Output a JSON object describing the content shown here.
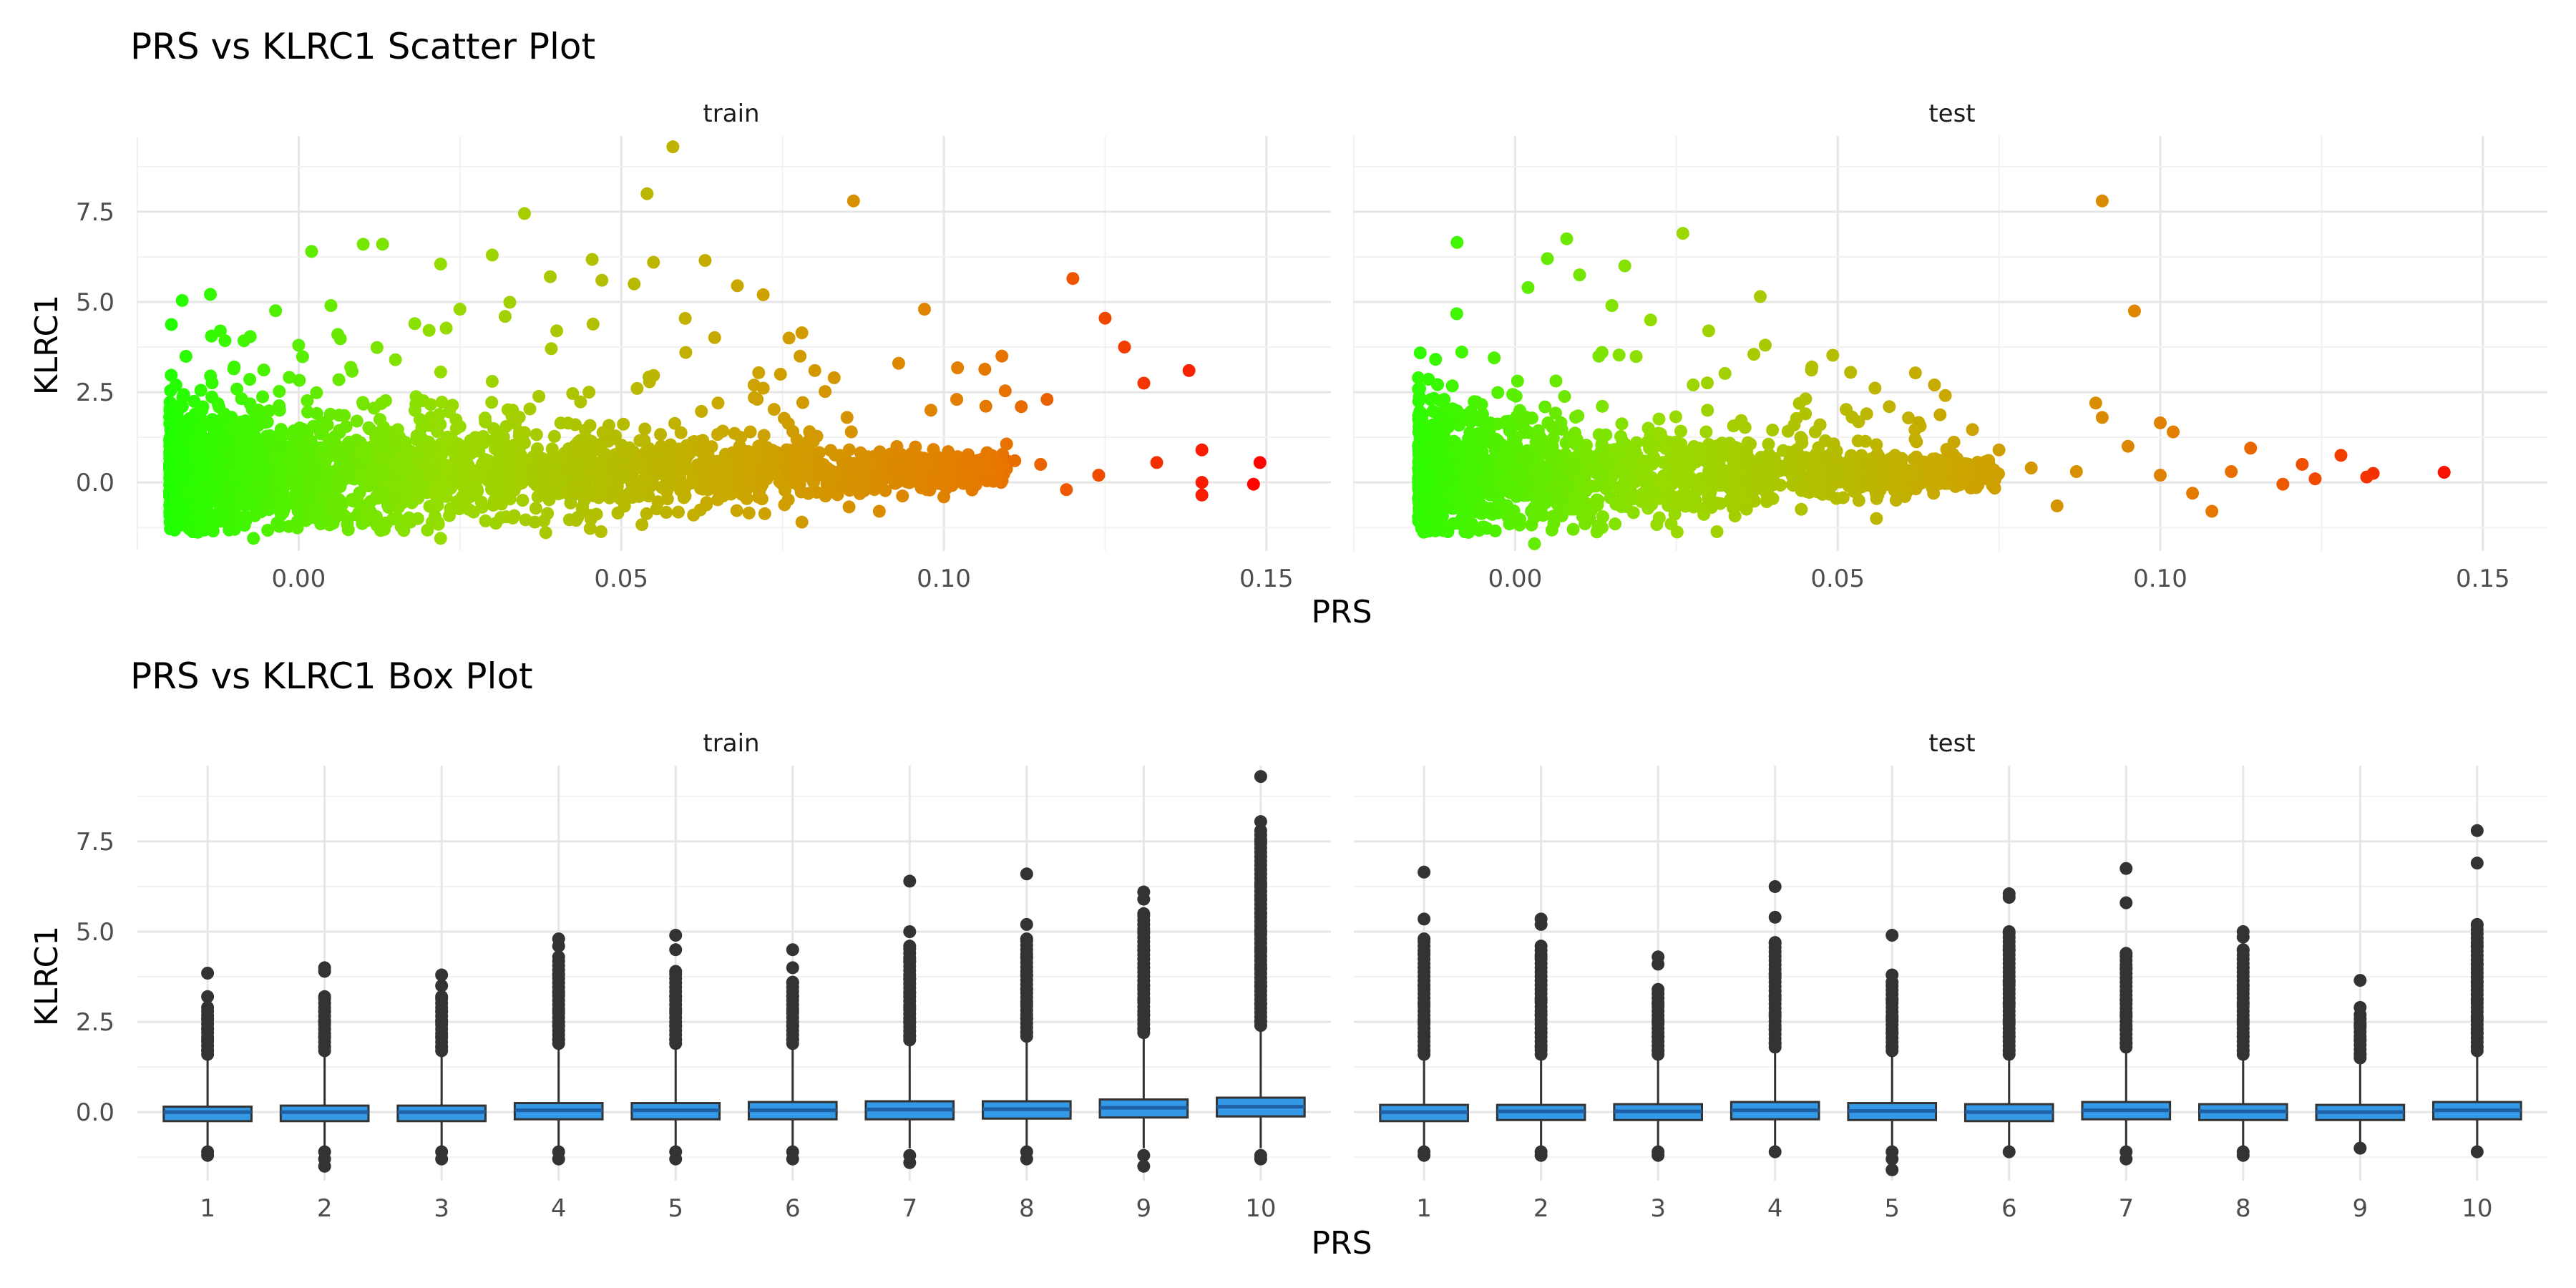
{
  "chart_data": [
    {
      "type": "scatter",
      "title": "PRS vs KLRC1 Scatter Plot",
      "xlabel": "PRS",
      "ylabel": "KLRC1",
      "panels": [
        "train",
        "test"
      ],
      "xlim": [
        -0.025,
        0.16
      ],
      "ylim": [
        -1.9,
        9.6
      ],
      "x_ticks": [
        0.0,
        0.05,
        0.1,
        0.15
      ],
      "x_tick_labels": [
        "0.00",
        "0.05",
        "0.10",
        "0.15"
      ],
      "y_ticks": [
        0.0,
        2.5,
        5.0,
        7.5
      ],
      "y_tick_labels": [
        "0.0",
        "2.5",
        "5.0",
        "7.5"
      ],
      "color_scale": {
        "low": "#22ff00",
        "high": "#ff0000",
        "low_value": -0.02,
        "high_value": 0.15
      },
      "grid": true,
      "series": [
        {
          "panel": "train",
          "points": [
            [
              0.058,
              9.3
            ],
            [
              0.086,
              7.8
            ],
            [
              0.035,
              7.45
            ],
            [
              0.054,
              8.0
            ],
            [
              0.01,
              6.6
            ],
            [
              0.013,
              6.6
            ],
            [
              0.002,
              6.4
            ],
            [
              0.03,
              6.3
            ],
            [
              0.022,
              6.05
            ],
            [
              0.055,
              6.1
            ],
            [
              0.063,
              6.15
            ],
            [
              0.039,
              5.7
            ],
            [
              0.047,
              5.6
            ],
            [
              0.052,
              5.5
            ],
            [
              0.068,
              5.45
            ],
            [
              0.072,
              5.2
            ],
            [
              0.12,
              5.65
            ],
            [
              0.125,
              4.55
            ],
            [
              0.128,
              3.75
            ],
            [
              0.097,
              4.8
            ],
            [
              0.138,
              3.1
            ],
            [
              0.131,
              2.75
            ],
            [
              0.109,
              3.5
            ],
            [
              0.093,
              3.3
            ],
            [
              0.076,
              4.0
            ],
            [
              0.08,
              3.1
            ],
            [
              0.116,
              2.3
            ],
            [
              0.112,
              2.1
            ],
            [
              0.149,
              0.55
            ],
            [
              0.14,
              0.9
            ],
            [
              0.14,
              0.0
            ],
            [
              0.14,
              -0.35
            ],
            [
              0.148,
              -0.05
            ],
            [
              0.133,
              0.55
            ],
            [
              0.124,
              0.2
            ],
            [
              0.119,
              -0.2
            ],
            [
              0.115,
              0.5
            ],
            [
              0.1,
              -0.4
            ],
            [
              0.09,
              -0.8
            ],
            [
              0.078,
              -1.1
            ],
            [
              0.043,
              -1.05
            ],
            [
              0.022,
              -1.55
            ],
            [
              -0.007,
              -1.55
            ],
            [
              0.018,
              4.4
            ],
            [
              0.005,
              4.9
            ],
            [
              0.025,
              4.8
            ],
            [
              0.032,
              4.6
            ],
            [
              0.04,
              4.2
            ],
            [
              0.06,
              3.6
            ],
            [
              0.045,
              2.5
            ],
            [
              0.065,
              2.2
            ],
            [
              0.085,
              1.8
            ],
            [
              0.098,
              2.0
            ],
            [
              0.083,
              2.9
            ],
            [
              0.102,
              2.3
            ],
            [
              0.07,
              1.4
            ],
            [
              0.03,
              2.8
            ],
            [
              0.015,
              3.4
            ],
            [
              0.0,
              3.8
            ],
            [
              -0.01,
              3.2
            ],
            [
              -0.015,
              2.0
            ],
            [
              -0.018,
              0.5
            ],
            [
              -0.02,
              -0.3
            ],
            [
              0.107,
              0.3
            ],
            [
              0.092,
              0.55
            ],
            [
              0.104,
              0.2
            ],
            [
              0.111,
              0.6
            ],
            [
              0.095,
              0.8
            ]
          ],
          "cloud": {
            "x_min": -0.02,
            "x_max": 0.11,
            "y_center": 0.3,
            "description": "dense cloud"
          }
        },
        {
          "panel": "test",
          "points": [
            [
              0.091,
              7.8
            ],
            [
              0.096,
              4.75
            ],
            [
              0.026,
              6.9
            ],
            [
              0.008,
              6.75
            ],
            [
              -0.009,
              6.65
            ],
            [
              0.005,
              6.2
            ],
            [
              0.017,
              6.0
            ],
            [
              0.01,
              5.75
            ],
            [
              0.038,
              5.15
            ],
            [
              0.015,
              4.9
            ],
            [
              0.002,
              5.4
            ],
            [
              0.021,
              4.5
            ],
            [
              0.03,
              4.2
            ],
            [
              0.037,
              3.55
            ],
            [
              0.046,
              3.2
            ],
            [
              0.052,
              3.05
            ],
            [
              0.065,
              2.7
            ],
            [
              0.058,
              2.1
            ],
            [
              0.09,
              2.2
            ],
            [
              0.091,
              1.8
            ],
            [
              0.1,
              1.65
            ],
            [
              0.102,
              1.4
            ],
            [
              0.114,
              0.95
            ],
            [
              0.122,
              0.5
            ],
            [
              0.128,
              0.75
            ],
            [
              0.133,
              0.25
            ],
            [
              0.144,
              0.28
            ],
            [
              0.132,
              0.15
            ],
            [
              0.124,
              0.1
            ],
            [
              0.119,
              -0.05
            ],
            [
              0.108,
              -0.8
            ],
            [
              0.084,
              -0.65
            ],
            [
              0.056,
              -1.0
            ],
            [
              0.009,
              -1.3
            ],
            [
              0.003,
              -1.7
            ],
            [
              -0.011,
              2.3
            ],
            [
              -0.013,
              1.0
            ],
            [
              -0.015,
              0.0
            ],
            [
              0.095,
              1.0
            ],
            [
              0.087,
              0.3
            ],
            [
              0.1,
              0.2
            ],
            [
              0.105,
              -0.3
            ],
            [
              0.111,
              0.3
            ],
            [
              0.07,
              0.5
            ],
            [
              0.075,
              0.9
            ],
            [
              0.08,
              0.4
            ],
            [
              0.062,
              1.2
            ],
            [
              0.045,
              1.9
            ]
          ],
          "cloud": {
            "x_min": -0.015,
            "x_max": 0.075,
            "y_center": 0.25,
            "description": "dense cloud"
          }
        }
      ]
    },
    {
      "type": "box",
      "title": "PRS vs KLRC1 Box Plot",
      "xlabel": "PRS",
      "ylabel": "KLRC1",
      "panels": [
        "train",
        "test"
      ],
      "categories": [
        "1",
        "2",
        "3",
        "4",
        "5",
        "6",
        "7",
        "8",
        "9",
        "10"
      ],
      "ylim": [
        -1.9,
        9.6
      ],
      "y_ticks": [
        0.0,
        2.5,
        5.0,
        7.5
      ],
      "y_tick_labels": [
        "0.0",
        "2.5",
        "5.0",
        "7.5"
      ],
      "box_fill": "#3399e6",
      "median_color": "#3399e6",
      "outlier_color": "#333333",
      "grid": true,
      "series": [
        {
          "panel": "train",
          "boxes": [
            {
              "q1": -0.25,
              "median": 0.0,
              "q3": 0.15,
              "whisker_low": -1.0,
              "whisker_high": 1.5,
              "outliers_low": [
                -1.1,
                -1.2
              ],
              "outliers_high": [
                1.7,
                2.0,
                2.3,
                2.6,
                2.9,
                3.2,
                3.85
              ]
            },
            {
              "q1": -0.25,
              "median": 0.0,
              "q3": 0.18,
              "whisker_low": -1.0,
              "whisker_high": 1.6,
              "outliers_low": [
                -1.1,
                -1.3,
                -1.5
              ],
              "outliers_high": [
                1.8,
                2.1,
                2.5,
                2.8,
                3.2,
                3.9,
                4.0
              ]
            },
            {
              "q1": -0.25,
              "median": 0.0,
              "q3": 0.18,
              "whisker_low": -1.0,
              "whisker_high": 1.6,
              "outliers_low": [
                -1.1,
                -1.3
              ],
              "outliers_high": [
                1.8,
                2.1,
                2.5,
                2.8,
                3.2,
                3.5,
                3.8
              ]
            },
            {
              "q1": -0.2,
              "median": 0.05,
              "q3": 0.25,
              "whisker_low": -1.0,
              "whisker_high": 1.8,
              "outliers_low": [
                -1.1,
                -1.3
              ],
              "outliers_high": [
                2.0,
                2.4,
                2.8,
                3.3,
                3.8,
                4.3,
                4.6,
                4.8
              ]
            },
            {
              "q1": -0.2,
              "median": 0.05,
              "q3": 0.25,
              "whisker_low": -1.0,
              "whisker_high": 1.8,
              "outliers_low": [
                -1.1,
                -1.3
              ],
              "outliers_high": [
                2.0,
                2.4,
                2.8,
                3.2,
                3.9,
                4.5,
                4.9
              ]
            },
            {
              "q1": -0.2,
              "median": 0.05,
              "q3": 0.28,
              "whisker_low": -1.0,
              "whisker_high": 1.8,
              "outliers_low": [
                -1.1,
                -1.3
              ],
              "outliers_high": [
                2.0,
                2.4,
                2.8,
                3.2,
                3.6,
                4.0,
                4.5
              ]
            },
            {
              "q1": -0.2,
              "median": 0.07,
              "q3": 0.3,
              "whisker_low": -1.0,
              "whisker_high": 1.9,
              "outliers_low": [
                -1.2,
                -1.4
              ],
              "outliers_high": [
                2.1,
                2.5,
                2.9,
                3.3,
                3.7,
                4.2,
                4.6,
                5.0,
                6.4
              ]
            },
            {
              "q1": -0.18,
              "median": 0.08,
              "q3": 0.3,
              "whisker_low": -1.0,
              "whisker_high": 2.0,
              "outliers_low": [
                -1.1,
                -1.3
              ],
              "outliers_high": [
                2.2,
                2.6,
                3.0,
                3.4,
                3.8,
                4.3,
                4.8,
                5.2,
                6.6
              ]
            },
            {
              "q1": -0.15,
              "median": 0.12,
              "q3": 0.35,
              "whisker_low": -1.0,
              "whisker_high": 2.1,
              "outliers_low": [
                -1.2,
                -1.5
              ],
              "outliers_high": [
                2.3,
                2.7,
                3.1,
                3.5,
                4.0,
                4.5,
                5.0,
                5.5,
                5.9,
                6.1
              ]
            },
            {
              "q1": -0.12,
              "median": 0.15,
              "q3": 0.4,
              "whisker_low": -1.0,
              "whisker_high": 2.3,
              "outliers_low": [
                -1.2,
                -1.3
              ],
              "outliers_high": [
                2.5,
                3.0,
                3.5,
                4.0,
                4.5,
                5.0,
                5.5,
                5.9,
                6.3,
                7.5,
                7.8,
                8.05,
                9.3
              ]
            }
          ]
        },
        {
          "panel": "test",
          "boxes": [
            {
              "q1": -0.25,
              "median": 0.0,
              "q3": 0.2,
              "whisker_low": -1.0,
              "whisker_high": 1.5,
              "outliers_low": [
                -1.1,
                -1.2
              ],
              "outliers_high": [
                1.7,
                2.1,
                2.5,
                3.0,
                3.5,
                4.0,
                4.4,
                4.8,
                5.35,
                6.65
              ]
            },
            {
              "q1": -0.22,
              "median": 0.02,
              "q3": 0.2,
              "whisker_low": -1.0,
              "whisker_high": 1.5,
              "outliers_low": [
                -1.1,
                -1.2
              ],
              "outliers_high": [
                1.8,
                2.2,
                2.7,
                3.1,
                4.3,
                4.6,
                5.2,
                5.35
              ]
            },
            {
              "q1": -0.22,
              "median": 0.02,
              "q3": 0.22,
              "whisker_low": -1.0,
              "whisker_high": 1.5,
              "outliers_low": [
                -1.1,
                -1.2
              ],
              "outliers_high": [
                1.7,
                2.1,
                2.5,
                3.0,
                3.4,
                4.1,
                4.3
              ]
            },
            {
              "q1": -0.2,
              "median": 0.05,
              "q3": 0.28,
              "whisker_low": -1.0,
              "whisker_high": 1.7,
              "outliers_low": [
                -1.1
              ],
              "outliers_high": [
                1.9,
                2.3,
                2.7,
                3.2,
                3.8,
                4.7,
                5.4,
                6.25
              ]
            },
            {
              "q1": -0.22,
              "median": 0.03,
              "q3": 0.25,
              "whisker_low": -1.0,
              "whisker_high": 1.6,
              "outliers_low": [
                -1.1,
                -1.3,
                -1.6
              ],
              "outliers_high": [
                1.8,
                2.2,
                2.6,
                3.1,
                3.6,
                3.8,
                4.9
              ]
            },
            {
              "q1": -0.25,
              "median": 0.0,
              "q3": 0.22,
              "whisker_low": -1.0,
              "whisker_high": 1.5,
              "outliers_low": [
                -1.1
              ],
              "outliers_high": [
                1.7,
                2.1,
                2.5,
                3.0,
                3.6,
                4.5,
                5.0,
                5.95,
                6.05
              ]
            },
            {
              "q1": -0.2,
              "median": 0.05,
              "q3": 0.28,
              "whisker_low": -1.0,
              "whisker_high": 1.7,
              "outliers_low": [
                -1.1,
                -1.3
              ],
              "outliers_high": [
                1.9,
                2.3,
                2.7,
                3.1,
                4.0,
                4.4,
                5.8,
                6.75
              ]
            },
            {
              "q1": -0.22,
              "median": 0.02,
              "q3": 0.22,
              "whisker_low": -1.0,
              "whisker_high": 1.5,
              "outliers_low": [
                -1.1,
                -1.2
              ],
              "outliers_high": [
                1.7,
                2.1,
                2.5,
                3.0,
                3.5,
                4.0,
                4.5,
                4.85,
                5.0
              ]
            },
            {
              "q1": -0.22,
              "median": 0.0,
              "q3": 0.2,
              "whisker_low": -0.9,
              "whisker_high": 1.4,
              "outliers_low": [
                -1.0
              ],
              "outliers_high": [
                1.6,
                2.0,
                2.4,
                2.7,
                2.9,
                3.65
              ]
            },
            {
              "q1": -0.2,
              "median": 0.05,
              "q3": 0.28,
              "whisker_low": -1.0,
              "whisker_high": 1.6,
              "outliers_low": [
                -1.1
              ],
              "outliers_high": [
                1.8,
                2.2,
                2.6,
                3.1,
                3.6,
                4.1,
                4.6,
                5.2,
                6.9,
                7.8
              ]
            }
          ]
        }
      ]
    }
  ]
}
